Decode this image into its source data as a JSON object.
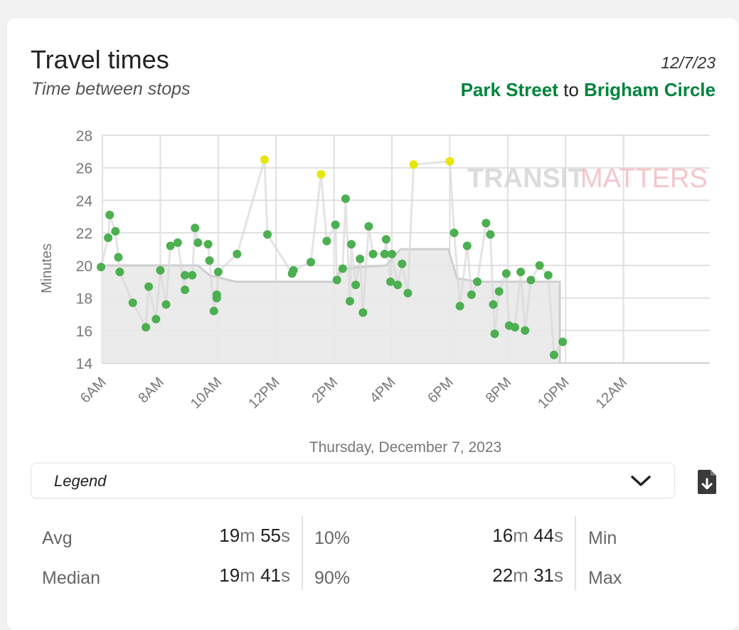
{
  "header": {
    "title": "Travel times",
    "subtitle": "Time between stops",
    "date": "12/7/23",
    "from_stop": "Park Street",
    "to_word": "to",
    "to_stop": "Brigham Circle"
  },
  "watermark": {
    "part1": "TRANSIT",
    "part2": "MATTERS"
  },
  "legend": {
    "label": "Legend"
  },
  "stats": {
    "avg_label": "Avg",
    "avg_min": "19",
    "avg_sec": "55",
    "median_label": "Median",
    "median_min": "19",
    "median_sec": "41",
    "p10_label": "10%",
    "p10_min": "16",
    "p10_sec": "44",
    "p90_label": "90%",
    "p90_min": "22",
    "p90_sec": "31",
    "min_label": "Min",
    "max_label": "Max",
    "min_unit": "m",
    "sec_unit": "s"
  },
  "colors": {
    "on_time": "#4caf50",
    "slow": "#e6e60a",
    "route_green": "#00843d",
    "benchmark_fill": "#e9e9e9",
    "benchmark_line": "#cfcfcf"
  },
  "icons": {
    "legend_toggle": "chevron-down-icon",
    "download": "file-download-icon"
  },
  "chart_data": {
    "type": "scatter",
    "xlabel": "Thursday, December 7, 2023",
    "ylabel": "Minutes",
    "xlim": [
      6,
      26
    ],
    "ylim": [
      14,
      28
    ],
    "yticks": [
      14,
      16,
      18,
      20,
      22,
      24,
      26,
      28
    ],
    "xticks": [
      {
        "x": 6,
        "label": "6AM"
      },
      {
        "x": 8,
        "label": "8AM"
      },
      {
        "x": 10,
        "label": "10AM"
      },
      {
        "x": 12,
        "label": "12PM"
      },
      {
        "x": 14,
        "label": "2PM"
      },
      {
        "x": 16,
        "label": "4PM"
      },
      {
        "x": 18,
        "label": "6PM"
      },
      {
        "x": 20,
        "label": "8PM"
      },
      {
        "x": 22,
        "label": "10PM"
      },
      {
        "x": 24,
        "label": "12AM"
      }
    ],
    "grid": true,
    "benchmark": [
      [
        5.95,
        20
      ],
      [
        9.3,
        20
      ],
      [
        9.7,
        19.4
      ],
      [
        10.6,
        19
      ],
      [
        14.1,
        19
      ],
      [
        14.2,
        19.8
      ],
      [
        15.8,
        20
      ],
      [
        16.3,
        21
      ],
      [
        17.95,
        21
      ],
      [
        18.25,
        19.2
      ],
      [
        19.0,
        19
      ],
      [
        21.8,
        19
      ],
      [
        21.8,
        14
      ]
    ],
    "series": [
      {
        "points": [
          [
            5.95,
            19.9
          ],
          [
            6.2,
            21.7
          ],
          [
            6.25,
            23.1
          ],
          [
            6.45,
            22.1
          ],
          [
            6.55,
            20.5
          ],
          [
            6.6,
            19.6
          ],
          [
            7.05,
            17.7
          ],
          [
            7.5,
            16.2
          ],
          [
            7.6,
            18.7
          ],
          [
            7.85,
            16.7
          ],
          [
            8.0,
            19.7
          ],
          [
            8.2,
            17.6
          ],
          [
            8.35,
            21.2
          ],
          [
            8.6,
            21.4
          ],
          [
            8.85,
            18.5
          ],
          [
            8.85,
            19.4
          ],
          [
            9.1,
            19.4
          ],
          [
            9.2,
            22.3
          ],
          [
            9.3,
            21.4
          ],
          [
            9.65,
            21.3
          ],
          [
            9.7,
            20.3
          ],
          [
            9.85,
            17.2
          ],
          [
            9.95,
            18.0
          ],
          [
            9.95,
            18.2
          ],
          [
            10.0,
            19.6
          ],
          [
            10.65,
            20.7
          ],
          [
            11.6,
            26.5
          ],
          [
            11.7,
            21.9
          ],
          [
            12.55,
            19.5
          ],
          [
            12.6,
            19.7
          ],
          [
            13.2,
            20.2
          ],
          [
            13.55,
            25.6
          ],
          [
            13.75,
            21.5
          ],
          [
            14.05,
            22.5
          ],
          [
            14.1,
            19.1
          ],
          [
            14.3,
            19.8
          ],
          [
            14.4,
            24.1
          ],
          [
            14.55,
            17.8
          ],
          [
            14.6,
            21.3
          ],
          [
            14.75,
            18.8
          ],
          [
            14.9,
            20.4
          ],
          [
            15.0,
            17.1
          ],
          [
            15.2,
            22.4
          ],
          [
            15.35,
            20.7
          ],
          [
            15.75,
            20.7
          ],
          [
            15.8,
            21.6
          ],
          [
            15.95,
            19.0
          ],
          [
            16.0,
            20.7
          ],
          [
            16.2,
            18.8
          ],
          [
            16.35,
            20.1
          ],
          [
            16.55,
            18.3
          ],
          [
            16.75,
            26.2
          ],
          [
            18.0,
            26.4
          ],
          [
            18.15,
            22.0
          ],
          [
            18.35,
            17.5
          ],
          [
            18.6,
            21.2
          ],
          [
            18.75,
            18.2
          ],
          [
            18.95,
            19.0
          ],
          [
            19.25,
            22.6
          ],
          [
            19.4,
            21.9
          ],
          [
            19.5,
            17.6
          ],
          [
            19.55,
            15.8
          ],
          [
            19.7,
            18.4
          ],
          [
            19.95,
            19.5
          ],
          [
            20.05,
            16.3
          ],
          [
            20.25,
            16.2
          ],
          [
            20.45,
            19.6
          ],
          [
            20.6,
            16.0
          ],
          [
            20.8,
            19.1
          ],
          [
            21.1,
            20.0
          ],
          [
            21.4,
            19.4
          ],
          [
            21.6,
            14.5
          ],
          [
            21.9,
            15.3
          ]
        ]
      }
    ],
    "slow_threshold": 25
  }
}
